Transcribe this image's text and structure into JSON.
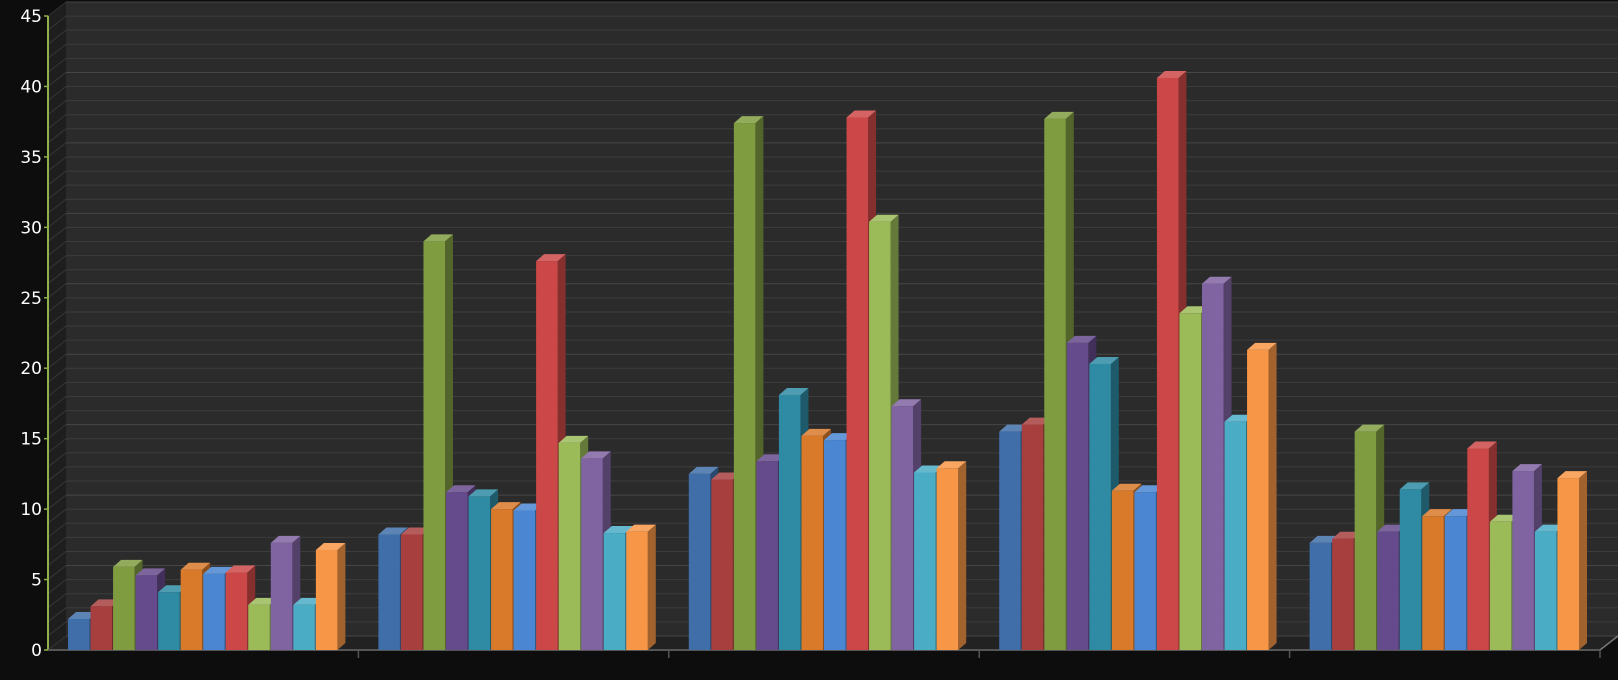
{
  "chart_data": {
    "type": "bar",
    "title": "",
    "xlabel": "",
    "ylabel": "",
    "ylim": [
      0,
      45
    ],
    "y_ticks": [
      "0",
      "5",
      "10",
      "15",
      "20",
      "25",
      "30",
      "35",
      "40",
      "45"
    ],
    "categories": [
      "",
      "",
      "",
      "",
      ""
    ],
    "grid": true,
    "legend": "none",
    "style": "3d-clustered-column",
    "colors": {
      "background": "#0d0d0d",
      "plot_background": "#2b2b2b",
      "gridline": "#4a4a4a",
      "axis": "#8fb04a",
      "tick_text": "#ffffff"
    },
    "series": [
      {
        "color": "#3f6ea8",
        "values": [
          2.2,
          8.2,
          12.5,
          15.5,
          7.6
        ]
      },
      {
        "color": "#a83f3f",
        "values": [
          3.1,
          8.2,
          12.1,
          16.0,
          7.9
        ]
      },
      {
        "color": "#7f9c40",
        "values": [
          5.9,
          29.0,
          37.4,
          37.7,
          15.5
        ]
      },
      {
        "color": "#654a8c",
        "values": [
          5.3,
          11.2,
          13.4,
          21.8,
          8.4
        ]
      },
      {
        "color": "#2f8ba3",
        "values": [
          4.1,
          10.9,
          18.1,
          20.3,
          11.4
        ]
      },
      {
        "color": "#d9792a",
        "values": [
          5.7,
          10.0,
          15.2,
          11.3,
          9.5
        ]
      },
      {
        "color": "#4a86d1",
        "values": [
          5.4,
          9.9,
          14.9,
          11.2,
          9.5
        ]
      },
      {
        "color": "#cc4848",
        "values": [
          5.5,
          27.6,
          37.8,
          40.6,
          14.3
        ]
      },
      {
        "color": "#9bbb59",
        "values": [
          3.2,
          14.7,
          30.4,
          23.9,
          9.1
        ]
      },
      {
        "color": "#8064a2",
        "values": [
          7.6,
          13.6,
          17.3,
          26.0,
          12.7
        ]
      },
      {
        "color": "#4bacc6",
        "values": [
          3.2,
          8.3,
          12.6,
          16.2,
          8.4
        ]
      },
      {
        "color": "#f79646",
        "values": [
          7.1,
          8.4,
          12.9,
          21.3,
          12.2
        ]
      }
    ]
  }
}
